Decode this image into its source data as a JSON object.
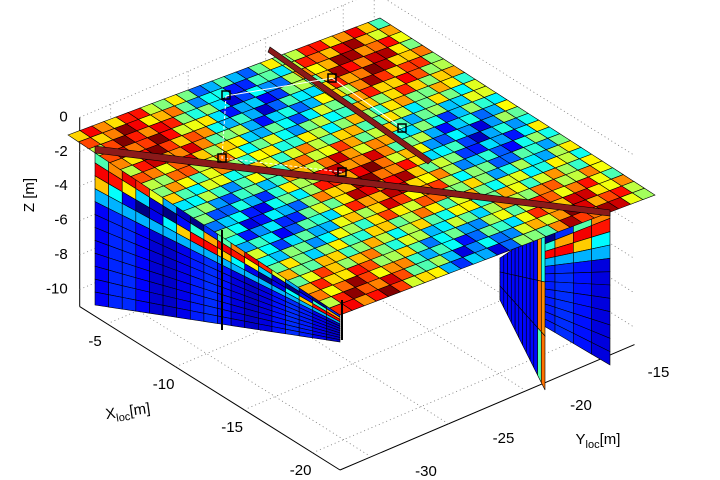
{
  "chart_data": {
    "type": "surface3d",
    "zlabel": "Z [m]",
    "xlabel": {
      "main": "X",
      "sub": "loc",
      "unit": "[m]"
    },
    "ylabel": {
      "main": "Y",
      "sub": "loc",
      "unit": "[m]"
    },
    "xlim": [
      -22,
      -3
    ],
    "xticks": [
      -5,
      -10,
      -15,
      -20
    ],
    "ylim": [
      -32,
      -13
    ],
    "yticks": [
      -15,
      -20,
      -25,
      -30
    ],
    "zlim": [
      -11,
      0
    ],
    "zticks": [
      0,
      -2,
      -4,
      -6,
      -8,
      -10
    ],
    "grid": true
  }
}
